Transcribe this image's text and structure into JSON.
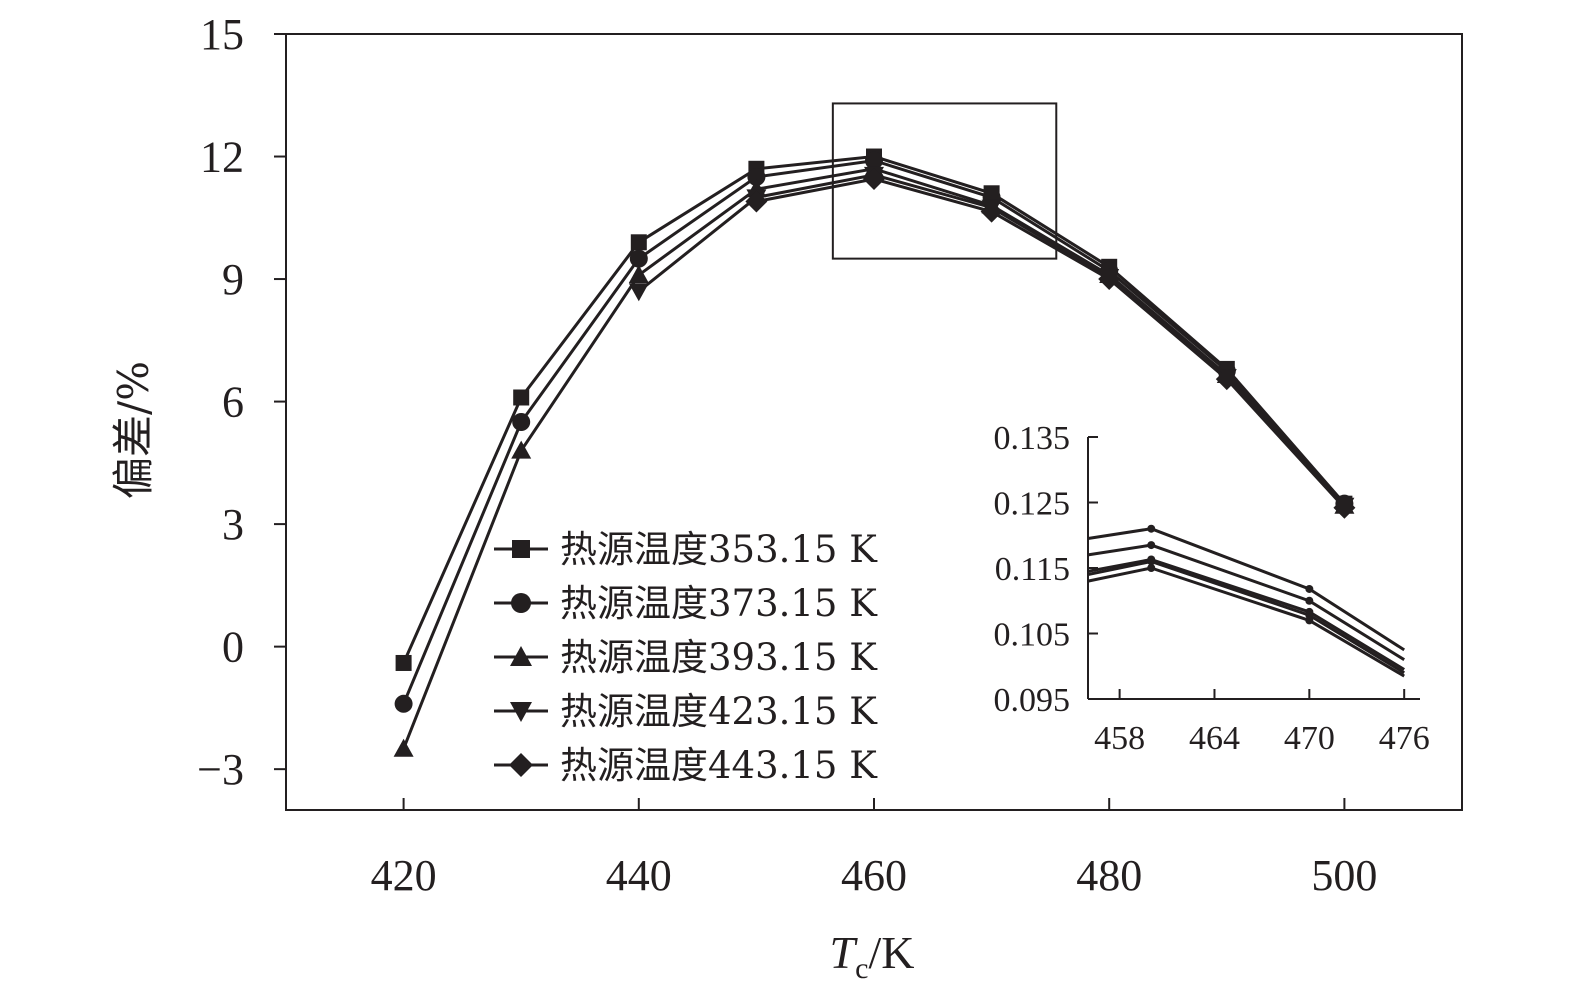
{
  "chart_data": [
    {
      "type": "line",
      "xlabel_symbol": "T",
      "xlabel_subscript": "c",
      "xlabel_unit": "/K",
      "ylabel": "偏差/%",
      "xlim": [
        410,
        510
      ],
      "ylim": [
        -4,
        15
      ],
      "xticks": [
        420,
        440,
        460,
        480,
        500
      ],
      "xtick_labels": [
        "420",
        "440",
        "460",
        "480",
        "500"
      ],
      "yticks": [
        -3,
        0,
        3,
        6,
        9,
        12,
        15
      ],
      "ytick_labels": [
        "−3",
        "0",
        "3",
        "6",
        "9",
        "12",
        "15"
      ],
      "grid": false,
      "legend_position": "bottom-left",
      "line_color": "#231f20",
      "x": [
        420,
        430,
        440,
        450,
        460,
        470,
        480,
        490,
        500
      ],
      "series": [
        {
          "name": "热源温度353.15 K",
          "marker": "square",
          "values": [
            null,
            6.1,
            9.9,
            11.7,
            12.0,
            11.1,
            9.3,
            6.8,
            3.5
          ]
        },
        {
          "name": "热源温度373.15 K",
          "marker": "circle",
          "values": [
            -1.4,
            5.5,
            9.5,
            11.5,
            11.9,
            11.0,
            9.2,
            6.75,
            3.5
          ]
        },
        {
          "name": "热源温度393.15 K",
          "marker": "triangle-up",
          "values": [
            -2.5,
            4.8,
            9.1,
            11.2,
            11.7,
            10.8,
            9.1,
            6.65,
            3.45
          ]
        },
        {
          "name": "热源温度423.15 K",
          "marker": "triangle-down",
          "values": [
            null,
            null,
            8.7,
            11.0,
            11.55,
            10.75,
            9.05,
            6.6,
            3.45
          ]
        },
        {
          "name": "热源温度443.15 K",
          "marker": "diamond",
          "values": [
            null,
            null,
            null,
            10.9,
            11.45,
            10.65,
            9.0,
            6.55,
            3.4
          ]
        }
      ],
      "first_point_square": {
        "x": 420,
        "y": -0.4
      },
      "zoom_box": {
        "x_range": [
          456.5,
          475.5
        ],
        "y_range": [
          9.5,
          13.3
        ]
      }
    },
    {
      "type": "line",
      "role": "inset",
      "xlim": [
        456,
        477
      ],
      "ylim": [
        0.095,
        0.135
      ],
      "xticks": [
        458,
        464,
        470,
        476
      ],
      "xtick_labels": [
        "458",
        "464",
        "470",
        "476"
      ],
      "yticks": [
        0.095,
        0.105,
        0.115,
        0.125,
        0.135
      ],
      "ytick_labels": [
        "0.095",
        "0.105",
        "0.115",
        "0.125",
        "0.135"
      ],
      "x": [
        456,
        460,
        470,
        476
      ],
      "series": [
        {
          "name": "热源温度353.15 K",
          "values": [
            0.1195,
            0.121,
            0.1118,
            0.1025
          ]
        },
        {
          "name": "热源温度373.15 K",
          "values": [
            0.117,
            0.1185,
            0.11,
            0.101
          ]
        },
        {
          "name": "热源温度393.15 K",
          "values": [
            0.1145,
            0.1163,
            0.1083,
            0.0995
          ]
        },
        {
          "name": "热源温度423.15 K",
          "values": [
            0.114,
            0.116,
            0.1078,
            0.099
          ]
        },
        {
          "name": "热源温度443.15 K",
          "values": [
            0.113,
            0.115,
            0.107,
            0.0985
          ]
        }
      ]
    }
  ]
}
